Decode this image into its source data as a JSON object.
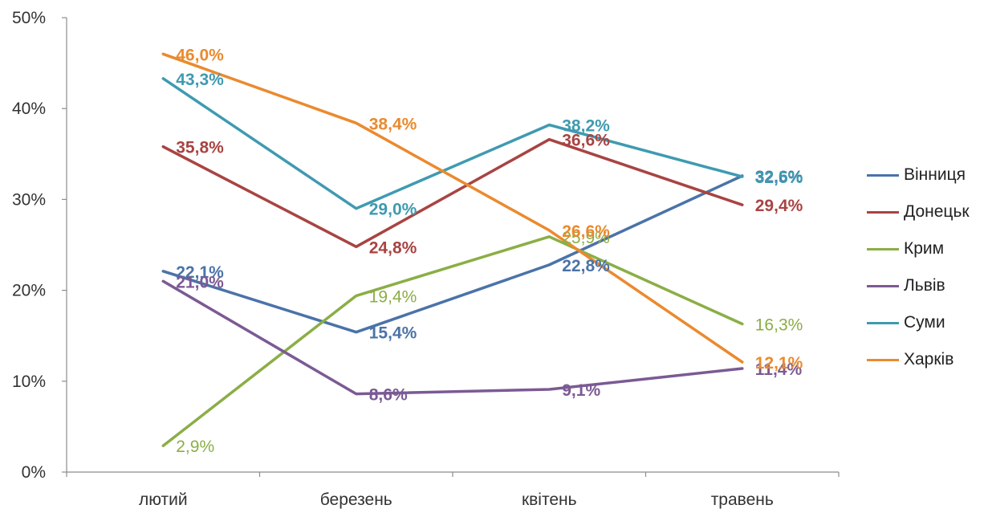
{
  "chart_data": {
    "type": "line",
    "categories": [
      "лютий",
      "березень",
      "квітень",
      "травень"
    ],
    "ylim": [
      0,
      50
    ],
    "yticks": [
      "0%",
      "10%",
      "20%",
      "30%",
      "40%",
      "50%"
    ],
    "grid": false,
    "legend_position": "right",
    "series": [
      {
        "name": "Вінниця",
        "color": "#4A73A8",
        "values": [
          22.1,
          15.4,
          22.8,
          32.6
        ],
        "labels": [
          "22,1%",
          "15,4%",
          "22,8%",
          "32,6%"
        ]
      },
      {
        "name": "Донецьк",
        "color": "#A84442",
        "values": [
          35.8,
          24.8,
          36.6,
          29.4
        ],
        "labels": [
          "35,8%",
          "24,8%",
          "36,6%",
          "29,4%"
        ]
      },
      {
        "name": "Крим",
        "color": "#8BAE46",
        "values": [
          2.9,
          19.4,
          25.9,
          16.3
        ],
        "labels": [
          "2,9%",
          "19,4%",
          "25,9%",
          "16,3%"
        ]
      },
      {
        "name": "Львів",
        "color": "#7B5A94",
        "values": [
          21.0,
          8.6,
          9.1,
          11.4
        ],
        "labels": [
          "21,0%",
          "8,6%",
          "9,1%",
          "11,4%"
        ]
      },
      {
        "name": "Суми",
        "color": "#3F9AB0",
        "values": [
          43.3,
          29.0,
          38.2,
          32.5
        ],
        "labels": [
          "43,3%",
          "29,0%",
          "38,2%",
          "32,5%"
        ]
      },
      {
        "name": "Харків",
        "color": "#EA8A2E",
        "values": [
          46.0,
          38.4,
          26.6,
          12.1
        ],
        "labels": [
          "46,0%",
          "38,4%",
          "26,6%",
          "12,1%"
        ]
      }
    ]
  }
}
